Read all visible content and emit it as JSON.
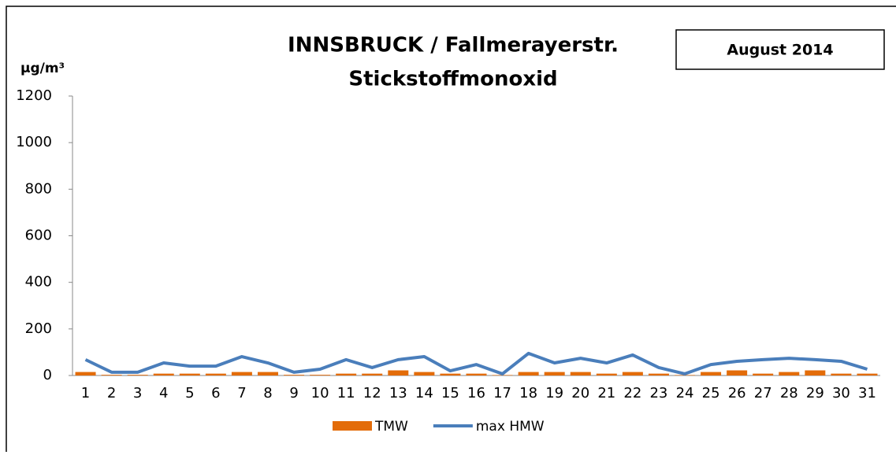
{
  "chart_data": {
    "type": "bar_line",
    "title": "INNSBRUCK / Fallmerayerstr.",
    "subtitle": "Stickstoffmonoxid",
    "annotation": "August 2014",
    "y_label": "µg/m³",
    "categories": [
      "1",
      "2",
      "3",
      "4",
      "5",
      "6",
      "7",
      "8",
      "9",
      "10",
      "11",
      "12",
      "13",
      "14",
      "15",
      "16",
      "17",
      "18",
      "19",
      "20",
      "21",
      "22",
      "23",
      "24",
      "25",
      "26",
      "27",
      "28",
      "29",
      "30",
      "31"
    ],
    "series": [
      {
        "name": "TMW",
        "type": "bar",
        "color": "#e36c09",
        "values": [
          15,
          3,
          3,
          8,
          8,
          8,
          15,
          15,
          3,
          3,
          8,
          8,
          22,
          15,
          8,
          8,
          2,
          15,
          15,
          15,
          8,
          15,
          8,
          2,
          15,
          22,
          8,
          15,
          22,
          8,
          8
        ]
      },
      {
        "name": "max HMW",
        "type": "line",
        "color": "#4a7ebb",
        "values": [
          68,
          14,
          14,
          54,
          40,
          40,
          81,
          54,
          14,
          27,
          68,
          34,
          68,
          81,
          20,
          47,
          7,
          95,
          54,
          74,
          54,
          88,
          34,
          7,
          47,
          61,
          68,
          74,
          68,
          61,
          27
        ]
      }
    ],
    "ylim": [
      0,
      1200
    ],
    "yticks": [
      0,
      200,
      400,
      600,
      800,
      1000,
      1200
    ],
    "grid": false,
    "legend": "bottom"
  }
}
